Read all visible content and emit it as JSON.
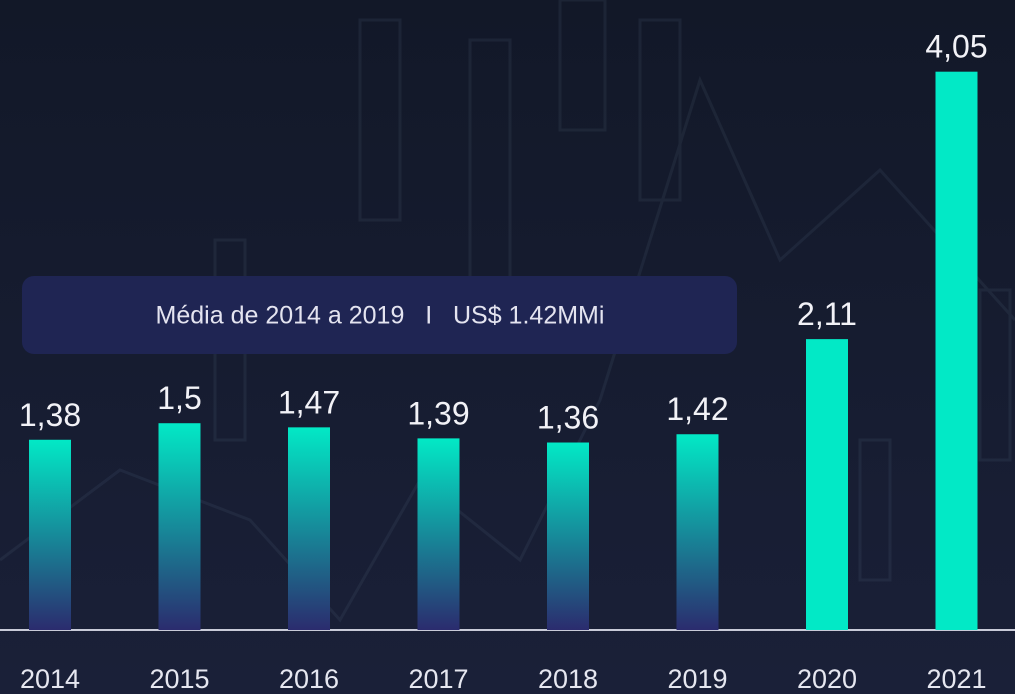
{
  "chart_data": {
    "type": "bar",
    "annotation": "Média de 2014 a 2019   I   US$ 1.42MMi",
    "categories": [
      "2014",
      "2015",
      "2016",
      "2017",
      "2018",
      "2019",
      "2020",
      "2021"
    ],
    "values": [
      1.38,
      1.5,
      1.47,
      1.39,
      1.36,
      1.42,
      2.11,
      4.05
    ],
    "value_labels": [
      "1,38",
      "1,5",
      "1,47",
      "1,39",
      "1,36",
      "1,42",
      "2,11",
      "4,05"
    ],
    "color": "#02e9c6",
    "gradient_color": "#2b2c6e",
    "gradient_bars": [
      true,
      true,
      true,
      true,
      true,
      true,
      false,
      false
    ],
    "ylim": [
      0,
      4.57
    ]
  }
}
